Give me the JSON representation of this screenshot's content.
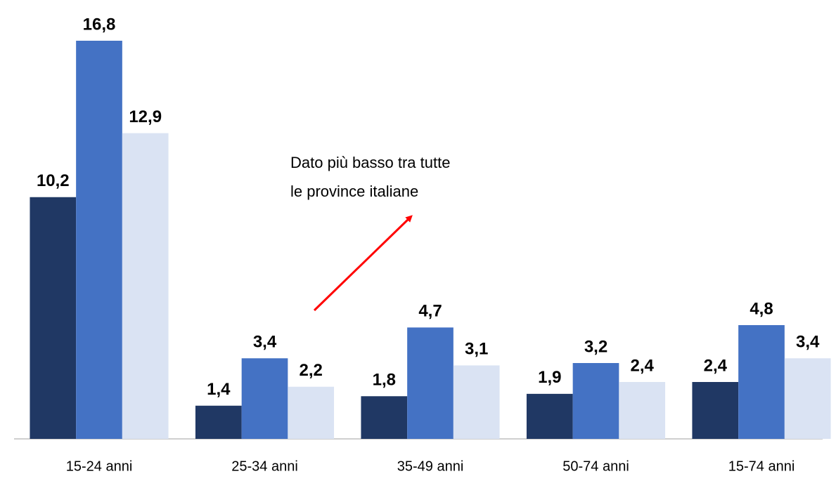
{
  "chart_data": {
    "type": "bar",
    "categories": [
      "15-24 anni",
      "25-34 anni",
      "35-49 anni",
      "50-74 anni",
      "15-74 anni"
    ],
    "series": [
      {
        "color": "#203864",
        "values": [
          10.2,
          1.4,
          1.8,
          1.9,
          2.4
        ],
        "value_labels": [
          "10,2",
          "1,4",
          "1,8",
          "1,9",
          "2,4"
        ]
      },
      {
        "color": "#4472c4",
        "values": [
          16.8,
          3.4,
          4.7,
          3.2,
          4.8
        ],
        "value_labels": [
          "16,8",
          "3,4",
          "4,7",
          "3,2",
          "4,8"
        ]
      },
      {
        "color": "#dae3f3",
        "values": [
          12.9,
          2.2,
          3.1,
          2.4,
          3.4
        ],
        "value_labels": [
          "12,9",
          "2,2",
          "3,1",
          "2,4",
          "3,4"
        ]
      }
    ],
    "annotation": [
      "Dato più basso tra tutte",
      "le province italiane"
    ],
    "grid": false
  }
}
